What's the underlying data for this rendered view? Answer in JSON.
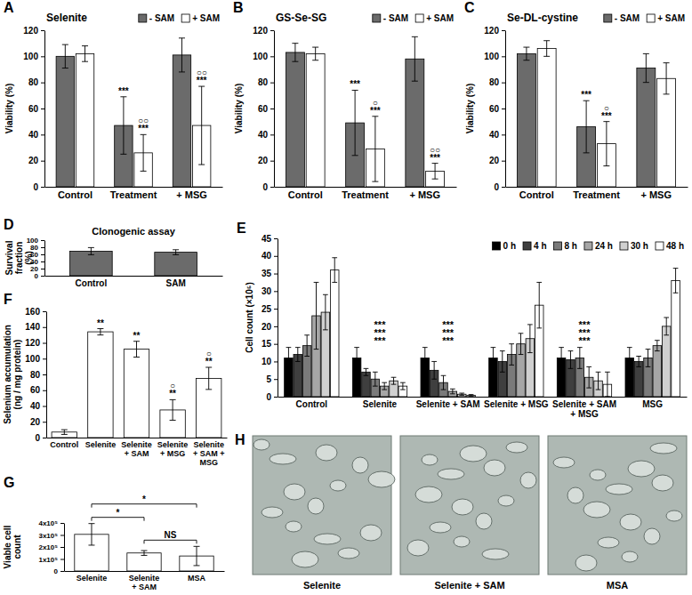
{
  "chart_data": [
    {
      "panel": "A",
      "type": "bar",
      "title": "Selenite",
      "y_label": "Viability (%)",
      "categories": [
        "Control",
        "Treatment",
        "+ MSG"
      ],
      "series": [
        {
          "name": "- SAM",
          "color": "#6b6b6b",
          "values": [
            100,
            47,
            101
          ],
          "errors": [
            9,
            22,
            13
          ],
          "significance": [
            null,
            [
              "***"
            ],
            null
          ]
        },
        {
          "name": "+ SAM",
          "color": "#ffffff",
          "values": [
            102,
            26,
            47
          ],
          "errors": [
            6,
            14,
            30
          ],
          "significance": [
            null,
            [
              "○○",
              "***"
            ],
            [
              "○○",
              "***"
            ]
          ]
        }
      ],
      "ylim": [
        0,
        120
      ],
      "yticks": [
        0,
        20,
        40,
        60,
        80,
        100,
        120
      ],
      "legend": "top-right"
    },
    {
      "panel": "B",
      "type": "bar",
      "title": "GS-Se-SG",
      "y_label": "Viability (%)",
      "categories": [
        "Control",
        "Treatment",
        "+ MSG"
      ],
      "series": [
        {
          "name": "- SAM",
          "color": "#6b6b6b",
          "values": [
            103,
            49,
            98
          ],
          "errors": [
            7,
            25,
            17
          ],
          "significance": [
            null,
            [
              "***"
            ],
            null
          ]
        },
        {
          "name": "+ SAM",
          "color": "#ffffff",
          "values": [
            102,
            29,
            12
          ],
          "errors": [
            5,
            25,
            6
          ],
          "significance": [
            null,
            [
              "○",
              "***"
            ],
            [
              "○○",
              "***"
            ]
          ]
        }
      ],
      "ylim": [
        0,
        120
      ],
      "yticks": [
        0,
        20,
        40,
        60,
        80,
        100,
        120
      ],
      "legend": "top-right"
    },
    {
      "panel": "C",
      "type": "bar",
      "title": "Se-DL-cystine",
      "y_label": "Viability (%)",
      "categories": [
        "Control",
        "Treatment",
        "+ MSG"
      ],
      "series": [
        {
          "name": "- SAM",
          "color": "#6b6b6b",
          "values": [
            102,
            46,
            91
          ],
          "errors": [
            5,
            20,
            11
          ],
          "significance": [
            null,
            [
              "***"
            ],
            null
          ]
        },
        {
          "name": "+ SAM",
          "color": "#ffffff",
          "values": [
            106,
            33,
            83
          ],
          "errors": [
            6,
            17,
            12
          ],
          "significance": [
            null,
            [
              "○",
              "***"
            ],
            null
          ]
        }
      ],
      "ylim": [
        0,
        120
      ],
      "yticks": [
        0,
        20,
        40,
        60,
        80,
        100,
        120
      ],
      "legend": "top-right"
    },
    {
      "panel": "D",
      "type": "bar",
      "title": "Clonogenic assay",
      "y_label": "Survival fraction (%)",
      "categories": [
        "Control",
        "SAM"
      ],
      "values": [
        69,
        66
      ],
      "errors": [
        10,
        7
      ],
      "color": "#6b6b6b",
      "ylim": [
        0,
        100
      ],
      "yticks": [
        0,
        20,
        40,
        60,
        80,
        100
      ]
    },
    {
      "panel": "E",
      "type": "bar",
      "y_label": "Cell count (×10⁵)",
      "categories": [
        "Control",
        "Selenite",
        "Selenite + SAM",
        "Selenite + MSG",
        "Selenite + SAM + MSG",
        "MSG"
      ],
      "series": [
        {
          "name": "0 h",
          "color": "#000000",
          "values": [
            11,
            11,
            11,
            11,
            11,
            11
          ],
          "errors": [
            3,
            3,
            3,
            3,
            3,
            3
          ]
        },
        {
          "name": "4 h",
          "color": "#3f3f3f",
          "values": [
            12,
            7,
            7.5,
            10,
            10.5,
            10
          ],
          "errors": [
            2,
            1,
            2.5,
            3,
            2.5,
            1.5
          ]
        },
        {
          "name": "8 h",
          "color": "#7a7a7a",
          "values": [
            14.5,
            5,
            4,
            12,
            11,
            11
          ],
          "errors": [
            3,
            2,
            2,
            3,
            3,
            2.5
          ]
        },
        {
          "name": "24 h",
          "color": "#a6a6a6",
          "values": [
            23,
            3,
            1.5,
            15,
            5.5,
            14.5
          ],
          "errors": [
            9.5,
            1,
            0.7,
            3,
            3,
            1.5
          ]
        },
        {
          "name": "30 h",
          "color": "#d0d0d0",
          "values": [
            24,
            4.5,
            0.7,
            16.5,
            4.5,
            20
          ],
          "errors": [
            5,
            1,
            0.3,
            4,
            2.5,
            2.5
          ]
        },
        {
          "name": "48 h",
          "color": "#ffffff",
          "values": [
            36,
            3,
            0.4,
            26,
            3.5,
            33
          ],
          "errors": [
            3.5,
            1,
            0.2,
            6.5,
            3.5,
            3.5
          ]
        }
      ],
      "group_significance": [
        null,
        [
          "***",
          "***",
          "***"
        ],
        [
          "***",
          "***",
          "***"
        ],
        null,
        [
          "***",
          "***",
          "***"
        ],
        null
      ],
      "ylim": [
        0,
        45
      ],
      "yticks": [
        0,
        5,
        10,
        15,
        20,
        25,
        30,
        35,
        40,
        45
      ],
      "legend": "top-right"
    },
    {
      "panel": "F",
      "type": "bar",
      "y_label": "Selenium accumulation (ng / mg protein)",
      "categories": [
        "Control",
        "Selenite",
        "Selenite + SAM",
        "Selenite + MSG",
        "Selenite + SAM + MSG"
      ],
      "values": [
        7,
        134,
        112,
        35,
        75
      ],
      "errors": [
        3,
        4,
        10,
        13,
        14
      ],
      "color": "#ffffff",
      "significance": [
        null,
        [
          "**"
        ],
        [
          "**"
        ],
        [
          "○",
          "**"
        ],
        [
          "○",
          "**"
        ]
      ],
      "ylim": [
        0,
        160
      ],
      "yticks": [
        0,
        20,
        40,
        60,
        80,
        100,
        120,
        140,
        160
      ]
    },
    {
      "panel": "G",
      "type": "bar",
      "y_label": "Viable cell count",
      "categories": [
        "Selenite",
        "Selenite + SAM",
        "MSA"
      ],
      "values": [
        305000,
        150000,
        125000
      ],
      "errors": [
        90000,
        20000,
        80000
      ],
      "color": "#ffffff",
      "comparisons": [
        {
          "between": [
            "Selenite",
            "Selenite + SAM"
          ],
          "label": "*"
        },
        {
          "between": [
            "Selenite",
            "MSA"
          ],
          "label": "*"
        },
        {
          "between": [
            "Selenite + SAM",
            "MSA"
          ],
          "label": "NS"
        }
      ],
      "ylim": [
        0,
        400000
      ],
      "yticks": [
        0,
        {
          "value": 100000,
          "label": "1x10⁵"
        },
        {
          "value": 200000,
          "label": "2x10⁵"
        },
        {
          "value": 300000,
          "label": "3x10⁵"
        },
        {
          "value": 400000,
          "label": "4x10⁵"
        }
      ]
    },
    {
      "panel": "H",
      "type": "image",
      "captions": [
        "Selenite",
        "Selenite + SAM",
        "MSA"
      ]
    }
  ]
}
